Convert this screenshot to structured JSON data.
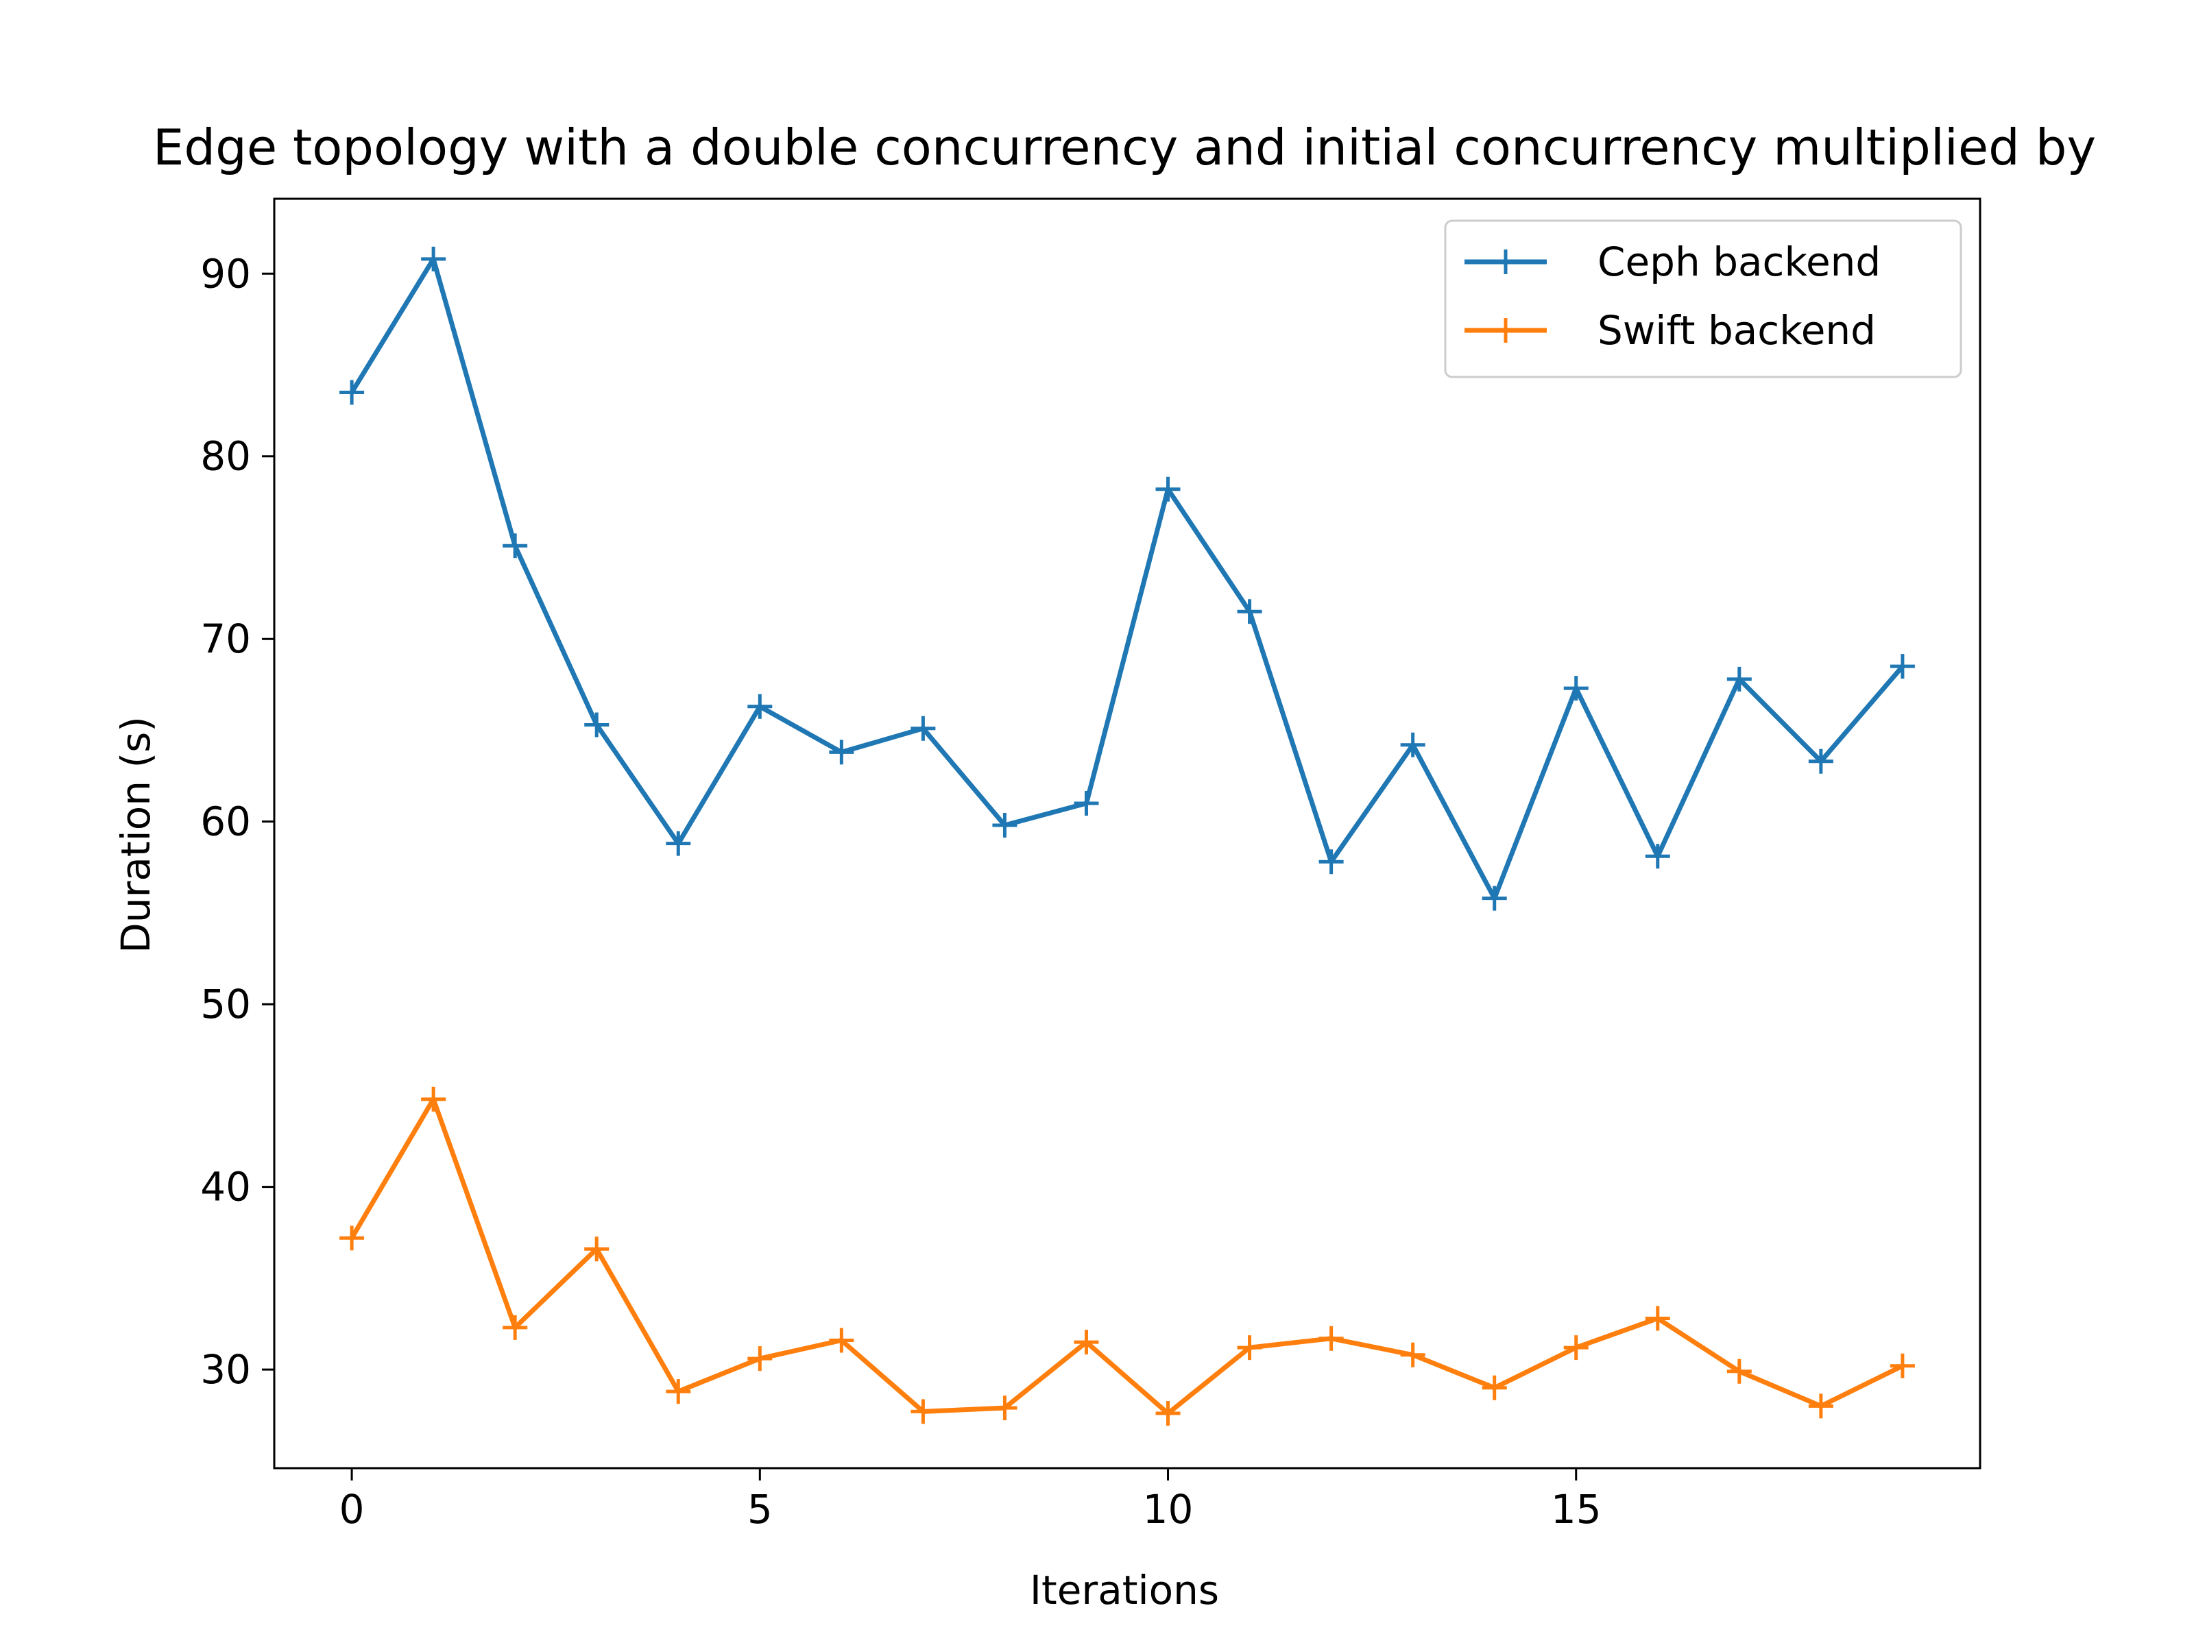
{
  "chart_data": {
    "type": "line",
    "title": "Edge topology with a double concurrency and initial concurrency multiplied by",
    "xlabel": "Iterations",
    "ylabel": "Duration (s)",
    "xlim": [
      -0.95,
      19.95
    ],
    "ylim": [
      24.6,
      94.1
    ],
    "xticks": [
      0,
      5,
      10,
      15
    ],
    "yticks": [
      30,
      40,
      50,
      60,
      70,
      80,
      90
    ],
    "grid": false,
    "legend_position": "top-right",
    "marker": "+",
    "x": [
      0,
      1,
      2,
      3,
      4,
      5,
      6,
      7,
      8,
      9,
      10,
      11,
      12,
      13,
      14,
      15,
      16,
      17,
      18,
      19
    ],
    "series": [
      {
        "name": "Ceph backend",
        "color": "#1f77b4",
        "values": [
          83.5,
          90.8,
          75.1,
          65.3,
          58.8,
          66.3,
          63.8,
          65.1,
          59.8,
          61.0,
          78.2,
          71.5,
          57.8,
          64.2,
          55.8,
          67.3,
          58.1,
          67.8,
          63.3,
          68.5
        ]
      },
      {
        "name": "Swift backend",
        "color": "#ff7f0e",
        "values": [
          37.2,
          44.8,
          32.3,
          36.6,
          28.8,
          30.6,
          31.6,
          27.7,
          27.9,
          31.5,
          27.6,
          31.2,
          31.7,
          30.8,
          29.0,
          31.2,
          32.8,
          29.9,
          28.0,
          30.2
        ]
      }
    ]
  }
}
